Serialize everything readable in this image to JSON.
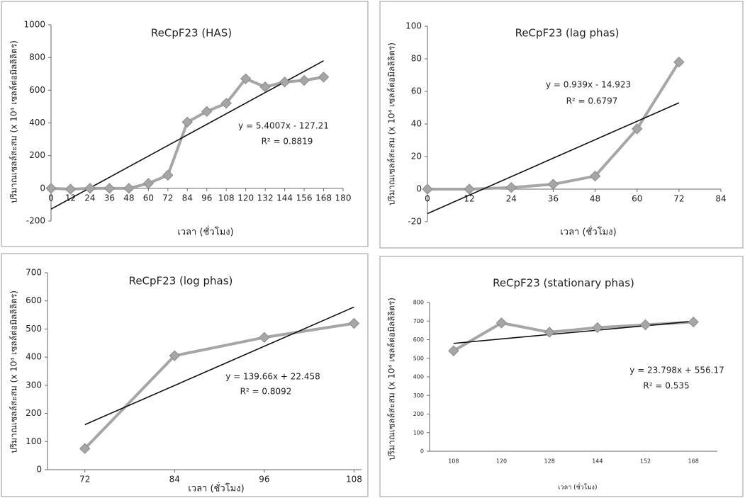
{
  "chart_data": [
    {
      "type": "line",
      "title": "ReCpF23 (HAS)",
      "x": [
        0,
        12,
        24,
        36,
        48,
        60,
        72,
        84,
        96,
        108,
        120,
        132,
        144,
        156,
        168
      ],
      "values": [
        0,
        -5,
        0,
        0,
        0,
        30,
        80,
        405,
        470,
        520,
        670,
        620,
        650,
        660,
        680
      ],
      "color": "#a6a6a6",
      "trendline": {
        "x": [
          0,
          168
        ],
        "values": [
          -127,
          780
        ],
        "color": "#111111"
      },
      "xlim": [
        0,
        180
      ],
      "xticks": [
        0,
        12,
        24,
        36,
        48,
        60,
        72,
        84,
        96,
        108,
        120,
        132,
        144,
        156,
        168,
        180
      ],
      "ylim": [
        -200,
        1000
      ],
      "yticks": [
        -200,
        0,
        200,
        400,
        600,
        800,
        1000
      ],
      "xlabel": "เวลา (ชั่วโมง)",
      "ylabel": "ปริมาณเซลล์สะสม (x 10⁴ เซลล์ต่อมิลลิลิตร)",
      "annotations": [
        "y = 5.4007x - 127.21",
        "R² = 0.8819"
      ]
    },
    {
      "type": "line",
      "title": "ReCpF23 (lag phas)",
      "x": [
        0,
        12,
        24,
        36,
        48,
        60,
        72
      ],
      "values": [
        0,
        0,
        1,
        3,
        8,
        37,
        78
      ],
      "color": "#a6a6a6",
      "trendline": {
        "x": [
          0,
          72
        ],
        "values": [
          -15,
          53
        ],
        "color": "#111111"
      },
      "xlim": [
        0,
        84
      ],
      "xticks": [
        0,
        12,
        24,
        36,
        48,
        60,
        72,
        84
      ],
      "ylim": [
        -20,
        100
      ],
      "yticks": [
        -20,
        0,
        20,
        40,
        60,
        80,
        100
      ],
      "xlabel": "เวลา (ชั่วโมง)",
      "ylabel": "ปริมาณเซลล์สะสม (x 10⁴ เซลล์ต่อมิลลิลิตร)",
      "annotations": [
        "y = 0.939x - 14.923",
        "R² = 0.6797"
      ]
    },
    {
      "type": "line",
      "title": "ReCpF23 (log phas)",
      "x": [
        72,
        84,
        96,
        108
      ],
      "values": [
        75,
        405,
        470,
        520
      ],
      "color": "#a6a6a6",
      "trendline": {
        "x": [
          72,
          108
        ],
        "values": [
          160,
          578
        ],
        "color": "#111111"
      },
      "xlim": [
        67,
        109
      ],
      "xticks": [
        72,
        84,
        96,
        108
      ],
      "ylim": [
        0,
        700
      ],
      "yticks": [
        0,
        100,
        200,
        300,
        400,
        500,
        600,
        700
      ],
      "xlabel": "เวลา (ชั่วโมง)",
      "ylabel": "ปริมาณเซลล์สะสม (x 10⁴ เซลล์ต่อมิลลิลิตร)",
      "annotations": [
        "y = 139.66x + 22.458",
        "R² = 0.8092"
      ]
    },
    {
      "type": "line",
      "title": "ReCpF23 (stationary phas)",
      "categories": [
        "108",
        "120",
        "128",
        "144",
        "152",
        "168"
      ],
      "values": [
        540,
        690,
        640,
        665,
        680,
        695
      ],
      "color": "#a6a6a6",
      "trendline": {
        "values": [
          580,
          604,
          628,
          651,
          675,
          699
        ],
        "color": "#111111"
      },
      "ylim": [
        0,
        800
      ],
      "yticks": [
        0,
        100,
        200,
        300,
        400,
        500,
        600,
        700,
        800
      ],
      "xlabel": "เวลา (ชั่วโมง)",
      "ylabel": "ปริมาณเซลล์สะสม (x 10⁴ เซลล์ต่อมิลลิลิตร)",
      "annotations": [
        "y = 23.798x + 556.17",
        "R² = 0.535"
      ]
    }
  ]
}
